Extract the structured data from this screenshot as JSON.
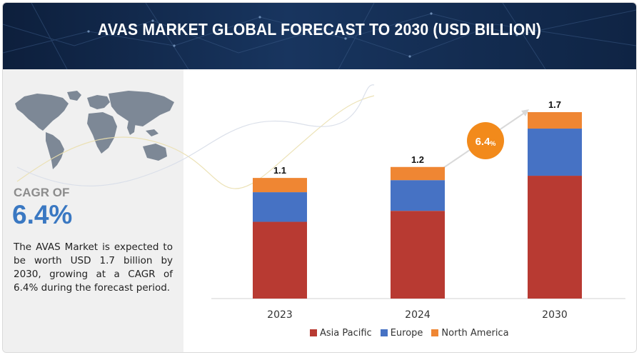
{
  "header": {
    "title": "AVAS MARKET GLOBAL FORECAST TO 2030 (USD BILLION)"
  },
  "left_panel": {
    "map_icon": "world-map-icon",
    "cagr_label": "CAGR OF",
    "cagr_value": "6.4%",
    "description": "The AVAS Market is expected to be worth USD 1.7 billion by 2030, growing at a CAGR of 6.4% during the forecast period."
  },
  "badge": {
    "value": "6.4",
    "unit": "%"
  },
  "colors": {
    "asia_pacific": "#b83a32",
    "europe": "#4672c4",
    "north_america": "#ef8633",
    "badge": "#f28a1b",
    "header_bg": "#12284a"
  },
  "chart_data": {
    "type": "bar",
    "stacked": true,
    "categories": [
      "2023",
      "2024",
      "2030"
    ],
    "totals": [
      "1.1",
      "1.2",
      "1.7"
    ],
    "series": [
      {
        "name": "Asia Pacific",
        "values": [
          0.7,
          0.8,
          1.12
        ]
      },
      {
        "name": "Europe",
        "values": [
          0.27,
          0.28,
          0.43
        ]
      },
      {
        "name": "North America",
        "values": [
          0.13,
          0.12,
          0.15
        ]
      }
    ],
    "ylim": [
      0,
      1.7
    ],
    "grid": false,
    "legend_position": "bottom",
    "annotation": "6.4%"
  }
}
